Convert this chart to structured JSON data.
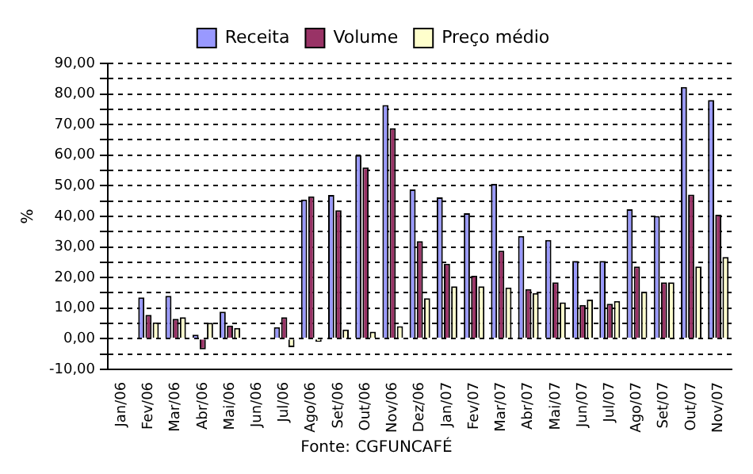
{
  "chart_data": {
    "type": "bar",
    "ylabel": "%",
    "categories": [
      "Jan/06",
      "Fev/06",
      "Mar/06",
      "Abr/06",
      "Mai/06",
      "Jun/06",
      "Jul/06",
      "Ago/06",
      "Set/06",
      "Out/06",
      "Nov/06",
      "Dez/06",
      "Jan/07",
      "Fev/07",
      "Mar/07",
      "Abr/07",
      "Mai/07",
      "Jun/07",
      "Jul/07",
      "Ago/07",
      "Set/07",
      "Out/07",
      "Nov/07"
    ],
    "series": [
      {
        "name": "Receita",
        "color": "#9999ff",
        "values": [
          null,
          13.5,
          14,
          1.3,
          8.8,
          null,
          3.8,
          45.5,
          47,
          60,
          76.4,
          48.8,
          46.2,
          41,
          50.6,
          33.6,
          32.3,
          25.4,
          25.4,
          42.3,
          40.1,
          82.3,
          78
        ]
      },
      {
        "name": "Volume",
        "color": "#993366",
        "values": [
          null,
          7.8,
          6.5,
          -3.5,
          4.3,
          null,
          7,
          46.5,
          42,
          56,
          68.8,
          31.9,
          24.5,
          20.6,
          28.8,
          16.2,
          18.4,
          11,
          11.4,
          23.6,
          18.4,
          47.1,
          40.6
        ]
      },
      {
        "name": "Preço médio",
        "color": "#ffffcc",
        "values": [
          null,
          5.3,
          7,
          5.2,
          3.5,
          null,
          -2.8,
          -1,
          3,
          2.3,
          4.1,
          13.2,
          17.1,
          17.1,
          16.7,
          14.9,
          11.9,
          12.8,
          12.3,
          15.4,
          18.4,
          23.6,
          26.7
        ]
      }
    ],
    "ylim": [
      -10,
      90
    ],
    "yticks": [
      {
        "value": -10,
        "label": "-10,00"
      },
      {
        "value": -5,
        "label": null
      },
      {
        "value": 0,
        "label": "0,00"
      },
      {
        "value": 5,
        "label": null
      },
      {
        "value": 10,
        "label": "10,00"
      },
      {
        "value": 15,
        "label": null
      },
      {
        "value": 20,
        "label": "20,00"
      },
      {
        "value": 25,
        "label": null
      },
      {
        "value": 30,
        "label": "30,00"
      },
      {
        "value": 35,
        "label": null
      },
      {
        "value": 40,
        "label": "40,00"
      },
      {
        "value": 45,
        "label": null
      },
      {
        "value": 50,
        "label": "50,00"
      },
      {
        "value": 55,
        "label": null
      },
      {
        "value": 60,
        "label": "60,00"
      },
      {
        "value": 65,
        "label": null
      },
      {
        "value": 70,
        "label": "70,00"
      },
      {
        "value": 75,
        "label": null
      },
      {
        "value": 80,
        "label": "80,00"
      },
      {
        "value": 85,
        "label": null
      },
      {
        "value": 90,
        "label": "90,00"
      }
    ],
    "grid": "y",
    "legend": "top",
    "annotations": [
      "Fonte: CGFUNCAFÉ"
    ]
  }
}
